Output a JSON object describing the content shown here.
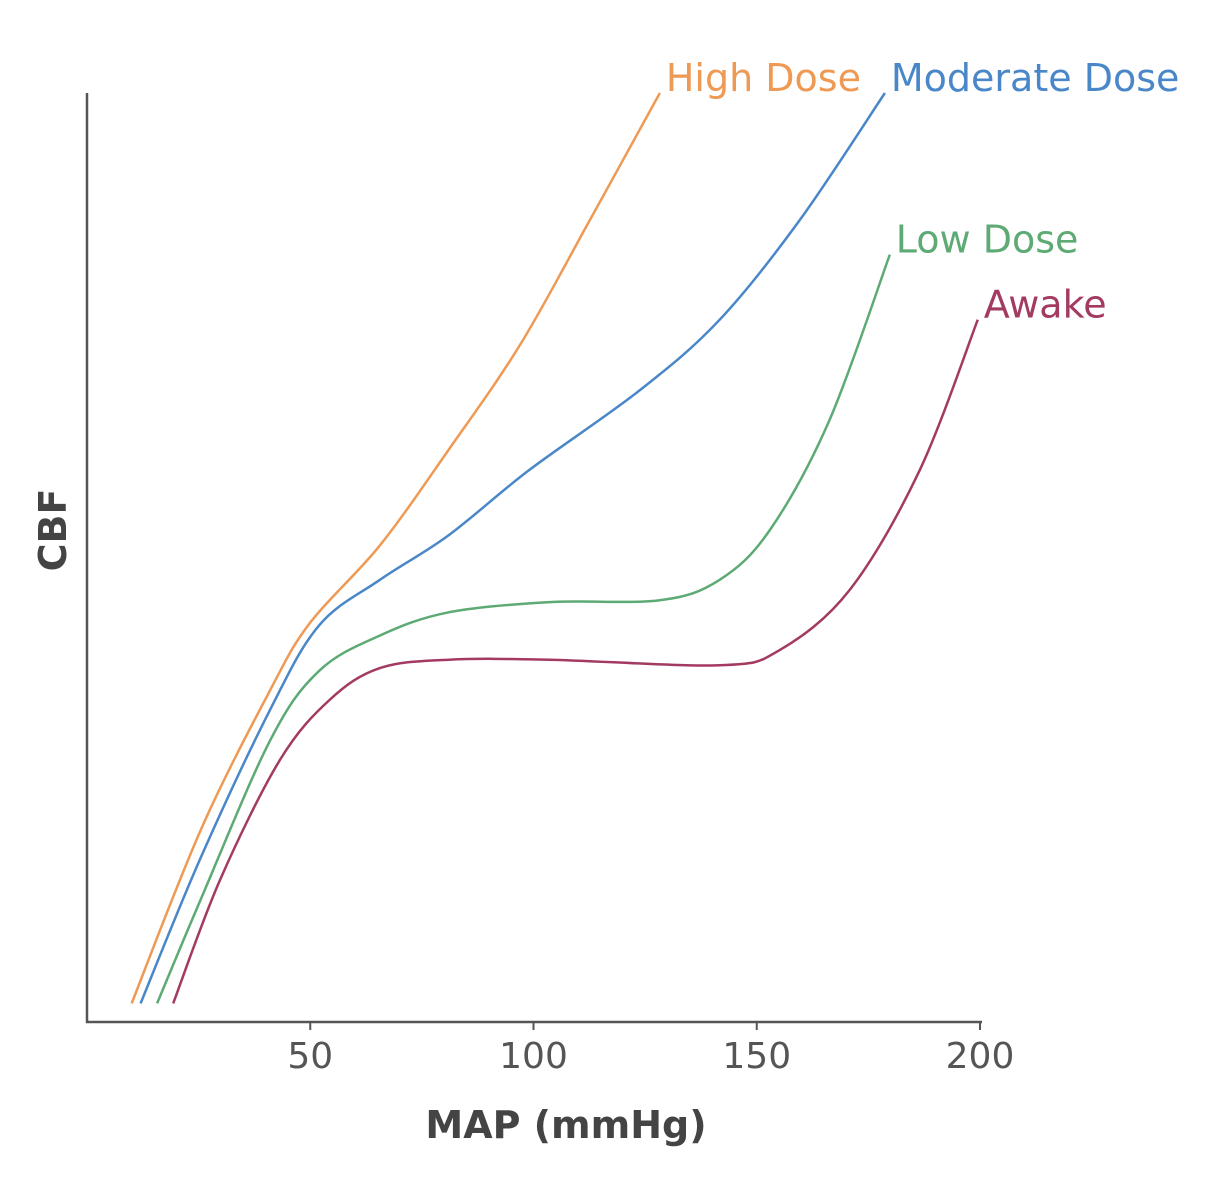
{
  "chart_data": {
    "type": "line",
    "title": "",
    "xlabel": "MAP (mmHg)",
    "ylabel": "CBF",
    "xlim": [
      0,
      200
    ],
    "ylim": [
      0,
      100
    ],
    "xticks": [
      50,
      100,
      150,
      200
    ],
    "grid": false,
    "legend": "inline labels at line ends",
    "series": [
      {
        "name": "High Dose",
        "color": "#EE9A55",
        "x": [
          10,
          25.5,
          41,
          50,
          65.6,
          81,
          97,
          112.6,
          128.3
        ],
        "y": [
          2,
          20.7,
          35.7,
          43,
          51.3,
          61.6,
          72.9,
          86.3,
          100
        ]
      },
      {
        "name": "Moderate Dose",
        "color": "#4A87C9",
        "x": [
          12,
          25.3,
          41,
          52,
          65.6,
          81,
          99,
          123.8,
          141.7,
          159.6,
          178.7
        ],
        "y": [
          2,
          17.5,
          33.6,
          42.7,
          47.6,
          52.4,
          59.4,
          68,
          75.6,
          86.3,
          100
        ]
      },
      {
        "name": "Low Dose",
        "color": "#5DAA74",
        "x": [
          15.7,
          25.3,
          41,
          52,
          65.6,
          81,
          103.6,
          128.3,
          141.7,
          153,
          166.3,
          179.8
        ],
        "y": [
          2,
          13,
          30.3,
          37.8,
          41.6,
          44.1,
          45.2,
          45.4,
          47.6,
          53,
          64.8,
          82.6
        ]
      },
      {
        "name": "Awake",
        "color": "#A33A62",
        "x": [
          19.3,
          29.8,
          43.2,
          54.4,
          65.6,
          81,
          103.6,
          141.7,
          155,
          170.8,
          186.5,
          199.5
        ],
        "y": [
          2,
          15.3,
          28.2,
          34.7,
          38.1,
          39,
          39,
          38.4,
          40,
          46.5,
          59.4,
          75.6
        ]
      }
    ]
  }
}
